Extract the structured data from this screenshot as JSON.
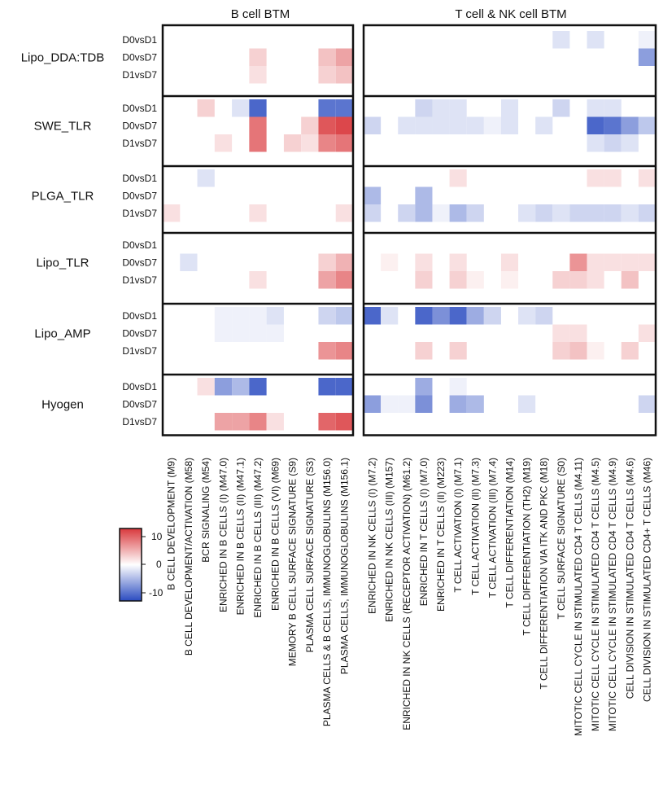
{
  "chart_data": {
    "type": "heatmap",
    "panel_titles": [
      "B cell BTM",
      "T cell & NK cell BTM"
    ],
    "groups": [
      "Lipo_DDA:TDB",
      "SWE_TLR",
      "PLGA_TLR",
      "Lipo_TLR",
      "Lipo_AMP",
      "Hyogen"
    ],
    "comparisons": [
      "D0vsD1",
      "D0vsD7",
      "D1vsD7"
    ],
    "b_cell_modules": [
      "B CELL DEVELOPMENT (M9)",
      "B CELL DEVELOPMENT/ACTIVATION (M58)",
      "BCR SIGNALING (M54)",
      "ENRICHED IN B CELLS (I) (M47.0)",
      "ENRICHED IN B CELLS (II) (M47.1)",
      "ENRICHED IN B CELLS (III) (M47.2)",
      "ENRICHED IN B CELLS (VI) (M69)",
      "MEMORY B CELL SURFACE SIGNATURE (S9)",
      "PLASMA CELL SURFACE SIGNATURE (S3)",
      "PLASMA CELLS & B CELLS, IMMUNOGLOBULINS (M156.0)",
      "PLASMA CELLS, IMMUNOGLOBULINS (M156.1)"
    ],
    "t_cell_modules": [
      "ENRICHED IN NK CELLS (I) (M7.2)",
      "ENRICHED IN NK CELLS (III) (M157)",
      "ENRICHED IN NK CELLS (RECEPTOR ACTIVATION) (M61.2)",
      "ENRICHED IN T CELLS (I) (M7.0)",
      "ENRICHED IN T CELLS (II) (M223)",
      "T CELL ACTIVATION (I) (M7.1)",
      "T CELL ACTIVATION (II) (M7.3)",
      "T CELL ACTIVATION (III) (M7.4)",
      "T CELL DIFFERENTIATION (M14)",
      "T CELL DIFFERENTIATION (TH2) (M19)",
      "T CELL DIFFERENTIATION VIA ITK AND PKC (M18)",
      "T CELL SURFACE SIGNATURE (S0)",
      "MITOTIC CELL CYCLE IN STIMULATED CD4 T CELLS (M4.11)",
      "MITOTIC CELL CYCLE IN STIMULATED CD4 T CELLS (M4.5)",
      "MITOTIC CELL CYCLE IN STIMULATED CD4 T CELLS (M4.9)",
      "CELL DIVISION IN STIMULATED CD4 T CELLS (M4.6)",
      "CELL DIVISION IN STIMULATED CD4+ T CELLS (M46)"
    ],
    "b_values": [
      [
        [
          0,
          0,
          0,
          0,
          0,
          0,
          0,
          0,
          0,
          0,
          0
        ],
        [
          0,
          0,
          0,
          0,
          0,
          3,
          0,
          0,
          0,
          4,
          6
        ],
        [
          0,
          0,
          0,
          0,
          0,
          2,
          0,
          0,
          0,
          3,
          4
        ]
      ],
      [
        [
          0,
          0,
          3,
          0,
          -2,
          -11,
          0,
          0,
          0,
          -10,
          -10
        ],
        [
          0,
          0,
          0,
          0,
          0,
          9,
          0,
          0,
          3,
          11,
          12
        ],
        [
          0,
          0,
          0,
          2,
          0,
          9,
          0,
          3,
          2,
          8,
          9
        ]
      ],
      [
        [
          0,
          0,
          -2,
          0,
          0,
          0,
          0,
          0,
          0,
          0,
          0
        ],
        [
          0,
          0,
          0,
          0,
          0,
          0,
          0,
          0,
          0,
          0,
          0
        ],
        [
          2,
          0,
          0,
          0,
          0,
          2,
          0,
          0,
          0,
          0,
          2
        ]
      ],
      [
        [
          0,
          0,
          0,
          0,
          0,
          0,
          0,
          0,
          0,
          0,
          0
        ],
        [
          0,
          -2,
          0,
          0,
          0,
          0,
          0,
          0,
          0,
          3,
          5
        ],
        [
          0,
          0,
          0,
          0,
          0,
          2,
          0,
          0,
          0,
          6,
          8
        ]
      ],
      [
        [
          0,
          0,
          0,
          -1,
          -1,
          -1,
          -2,
          0,
          0,
          -3,
          -4
        ],
        [
          0,
          0,
          0,
          -1,
          -1,
          -1,
          -1,
          0,
          0,
          0,
          0
        ],
        [
          0,
          0,
          0,
          0,
          0,
          0,
          0,
          0,
          0,
          7,
          8
        ]
      ],
      [
        [
          0,
          0,
          2,
          -7,
          -5,
          -11,
          0,
          0,
          0,
          -11,
          -11
        ],
        [
          0,
          0,
          0,
          0,
          0,
          0,
          0,
          0,
          0,
          0,
          0
        ],
        [
          0,
          0,
          0,
          6,
          6,
          8,
          2,
          0,
          0,
          10,
          11
        ]
      ]
    ],
    "t_values": [
      [
        [
          0,
          0,
          0,
          0,
          0,
          0,
          0,
          0,
          0,
          0,
          0,
          -2,
          0,
          -2,
          0,
          0,
          -1
        ],
        [
          0,
          0,
          0,
          0,
          0,
          0,
          0,
          0,
          0,
          0,
          0,
          0,
          0,
          0,
          0,
          0,
          -7
        ],
        [
          0,
          0,
          0,
          0,
          0,
          0,
          0,
          0,
          0,
          0,
          0,
          0,
          0,
          0,
          0,
          0,
          0
        ]
      ],
      [
        [
          0,
          0,
          0,
          -3,
          -2,
          -2,
          0,
          0,
          -2,
          0,
          0,
          -3,
          0,
          -2,
          -2,
          0,
          0
        ],
        [
          -3,
          0,
          -2,
          -2,
          -2,
          -2,
          -2,
          -1,
          -2,
          0,
          -2,
          0,
          0,
          -11,
          -10,
          -7,
          -4
        ],
        [
          0,
          0,
          0,
          0,
          0,
          0,
          0,
          0,
          0,
          0,
          0,
          0,
          0,
          -2,
          -3,
          -2,
          0
        ]
      ],
      [
        [
          0,
          0,
          0,
          0,
          0,
          2,
          0,
          0,
          0,
          0,
          0,
          0,
          0,
          2,
          2,
          0,
          2
        ],
        [
          -5,
          0,
          0,
          -5,
          0,
          0,
          0,
          0,
          0,
          0,
          0,
          0,
          0,
          0,
          0,
          0,
          0
        ],
        [
          -3,
          0,
          -3,
          -5,
          -1,
          -5,
          -3,
          0,
          0,
          -2,
          -3,
          -2,
          -3,
          -3,
          -3,
          -2,
          -3
        ]
      ],
      [
        [
          0,
          0,
          0,
          0,
          0,
          0,
          0,
          0,
          0,
          0,
          0,
          0,
          0,
          0,
          0,
          0,
          0
        ],
        [
          0,
          1,
          0,
          2,
          0,
          2,
          0,
          0,
          2,
          0,
          0,
          0,
          7,
          2,
          2,
          2,
          2
        ],
        [
          0,
          0,
          0,
          3,
          0,
          3,
          1,
          0,
          1,
          0,
          0,
          3,
          3,
          2,
          0,
          4,
          0
        ]
      ],
      [
        [
          -11,
          -2,
          0,
          -11,
          -8,
          -11,
          -6,
          -3,
          0,
          -2,
          -3,
          0,
          0,
          0,
          0,
          0,
          0
        ],
        [
          0,
          0,
          0,
          0,
          0,
          0,
          0,
          0,
          0,
          0,
          0,
          2,
          2,
          0,
          0,
          0,
          2
        ],
        [
          0,
          0,
          0,
          3,
          0,
          3,
          0,
          0,
          0,
          0,
          0,
          3,
          4,
          1,
          0,
          3,
          0
        ]
      ],
      [
        [
          0,
          0,
          0,
          -6,
          0,
          -1,
          0,
          0,
          0,
          0,
          0,
          0,
          0,
          0,
          0,
          0,
          0
        ],
        [
          -7,
          -1,
          -1,
          -8,
          0,
          -6,
          -5,
          0,
          0,
          -2,
          0,
          0,
          0,
          0,
          0,
          0,
          -3
        ],
        [
          0,
          0,
          0,
          0,
          0,
          0,
          0,
          0,
          0,
          0,
          0,
          0,
          0,
          0,
          0,
          0,
          0
        ]
      ]
    ],
    "colorbar": {
      "min": -13,
      "max": 13,
      "ticks": [
        10,
        0,
        -10
      ],
      "tick_labels": [
        "10",
        "0",
        "-10"
      ]
    },
    "colors": {
      "negative": "#2a4bc0",
      "neutral": "#ffffff",
      "positive": "#d9383c"
    }
  }
}
